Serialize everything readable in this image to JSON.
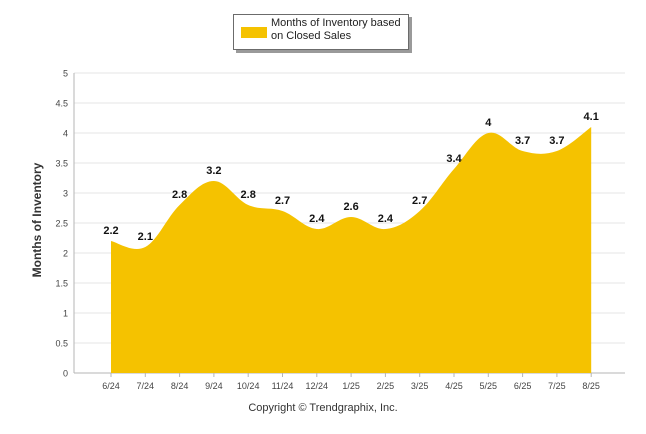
{
  "chart_data": {
    "type": "area",
    "categories": [
      "6/24",
      "7/24",
      "8/24",
      "9/24",
      "10/24",
      "11/24",
      "12/24",
      "1/25",
      "2/25",
      "3/25",
      "4/25",
      "5/25",
      "6/25",
      "7/25",
      "8/25"
    ],
    "series": [
      {
        "name": "Months of Inventory based on Closed Sales",
        "values": [
          2.2,
          2.1,
          2.8,
          3.2,
          2.8,
          2.7,
          2.4,
          2.6,
          2.4,
          2.7,
          3.4,
          4,
          3.7,
          3.7,
          4.1
        ],
        "color": "#f5c200"
      }
    ],
    "title": "",
    "xlabel": "",
    "ylabel": "Months of Inventory",
    "ylim": [
      0,
      5
    ],
    "yticks": [
      "0",
      "0.5",
      "1",
      "1.5",
      "2",
      "2.5",
      "3",
      "3.5",
      "4",
      "4.5",
      "5"
    ],
    "grid": true,
    "legend_position": "top-center",
    "footer": "Copyright © Trendgraphix, Inc."
  }
}
